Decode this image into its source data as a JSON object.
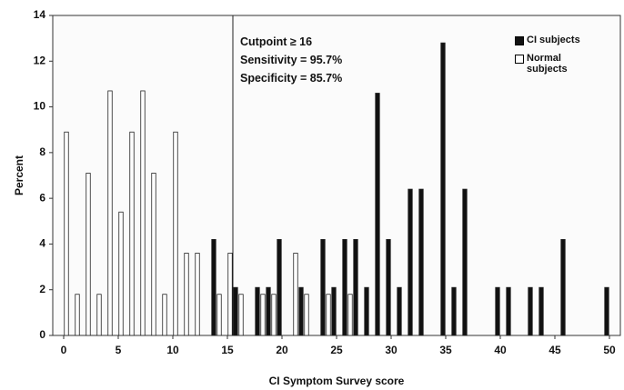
{
  "chart_data": {
    "type": "bar",
    "xlabel": "CI Symptom Survey score",
    "ylabel": "Percent",
    "xlim": [
      -1,
      51
    ],
    "ylim": [
      0,
      14
    ],
    "xticks": [
      0,
      5,
      10,
      15,
      20,
      25,
      30,
      35,
      40,
      45,
      50
    ],
    "yticks": [
      0,
      2,
      4,
      6,
      8,
      10,
      12,
      14
    ],
    "cutpoint_line": 15.5,
    "annotations": [
      "Cutpoint ≥ 16",
      "Sensitivity = 95.7%",
      "Specificity = 85.7%"
    ],
    "series": [
      {
        "name": "CI subjects",
        "color": "#111111",
        "x": [
          14,
          16,
          18,
          19,
          20,
          22,
          24,
          25,
          26,
          27,
          28,
          29,
          30,
          31,
          32,
          33,
          35,
          36,
          37,
          40,
          41,
          43,
          44,
          46,
          50
        ],
        "values": [
          4.2,
          2.1,
          2.1,
          2.1,
          4.2,
          2.1,
          4.2,
          2.1,
          4.2,
          4.2,
          2.1,
          10.6,
          4.2,
          2.1,
          6.4,
          6.4,
          12.8,
          2.1,
          6.4,
          2.1,
          2.1,
          2.1,
          2.1,
          4.2,
          2.1
        ]
      },
      {
        "name": "Normal subjects",
        "color": "#ffffff",
        "x": [
          0,
          1,
          2,
          3,
          4,
          5,
          6,
          7,
          8,
          9,
          10,
          11,
          12,
          14,
          15,
          16,
          18,
          19,
          21,
          22,
          24,
          26
        ],
        "values": [
          8.9,
          1.8,
          7.1,
          1.8,
          10.7,
          5.4,
          8.9,
          10.7,
          7.1,
          1.8,
          8.9,
          3.6,
          3.6,
          1.8,
          3.6,
          1.8,
          1.8,
          1.8,
          3.6,
          1.8,
          1.8,
          1.8
        ]
      }
    ]
  }
}
